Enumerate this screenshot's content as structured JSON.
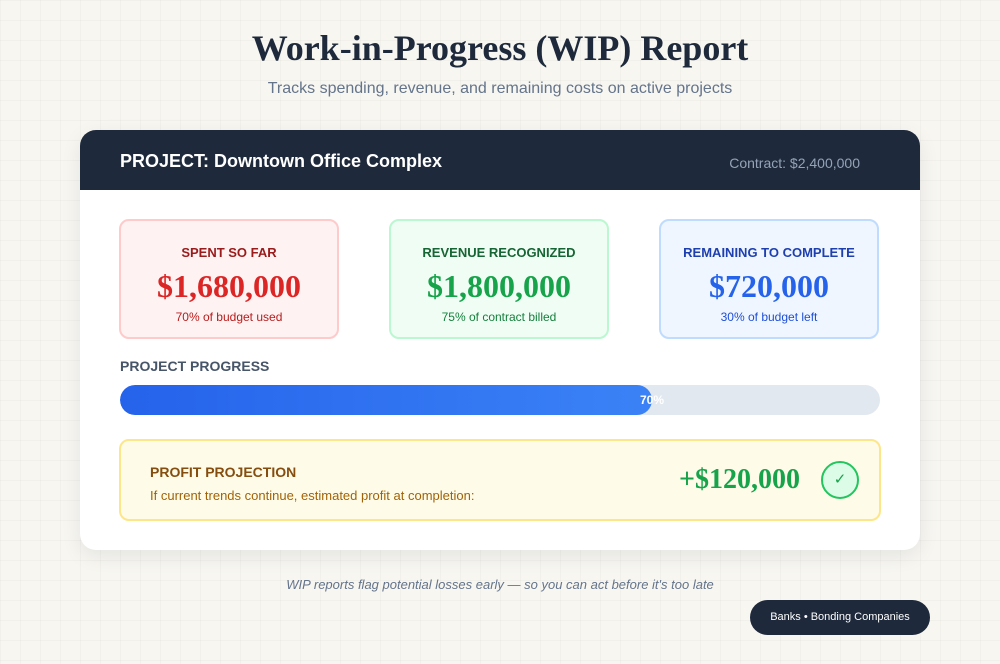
{
  "header": {
    "title": "Work-in-Progress (WIP) Report",
    "subtitle": "Tracks spending, revenue, and remaining costs on active projects"
  },
  "project": {
    "name": "PROJECT: Downtown Office Complex",
    "contract": "Contract: $2,400,000"
  },
  "stats": {
    "spent": {
      "label": "SPENT SO FAR",
      "value": "$1,680,000",
      "note": "70% of budget used",
      "color": "#dc2626"
    },
    "revenue": {
      "label": "REVENUE RECOGNIZED",
      "value": "$1,800,000",
      "note": "75% of contract billed",
      "color": "#16a34a"
    },
    "remaining": {
      "label": "REMAINING TO COMPLETE",
      "value": "$720,000",
      "note": "30% of budget left",
      "color": "#2563eb"
    }
  },
  "progress": {
    "label": "PROJECT PROGRESS",
    "percent": 70,
    "text": "70%"
  },
  "profit": {
    "title": "PROFIT PROJECTION",
    "description": "If current trends continue, estimated profit at completion:",
    "value": "+$120,000",
    "icon": "check-icon",
    "glyph": "✓"
  },
  "footer": {
    "note": "WIP reports flag potential losses early — so you can act before it's too late",
    "badge": "Banks • Bonding Companies"
  }
}
